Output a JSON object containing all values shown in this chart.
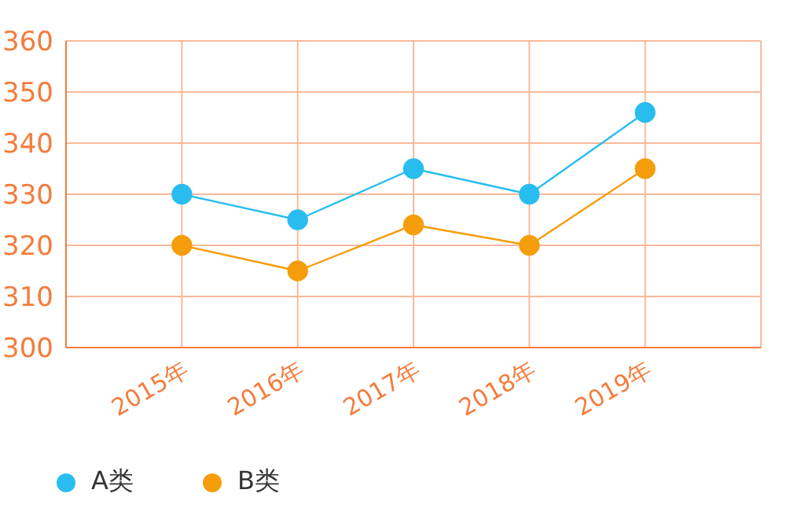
{
  "chart_data": {
    "type": "line",
    "categories": [
      "2015年",
      "2016年",
      "2017年",
      "2018年",
      "2019年"
    ],
    "series": [
      {
        "name": "A类",
        "color": "#29bdef",
        "values": [
          330,
          325,
          335,
          330,
          346
        ]
      },
      {
        "name": "B类",
        "color": "#f59d0b",
        "values": [
          320,
          315,
          324,
          320,
          335
        ]
      }
    ],
    "ylim": [
      300,
      360
    ],
    "yticks": [
      300,
      310,
      320,
      330,
      340,
      350,
      360
    ],
    "grid": true,
    "legend": "bottom left",
    "marker": "circle",
    "line_style": "solid"
  }
}
